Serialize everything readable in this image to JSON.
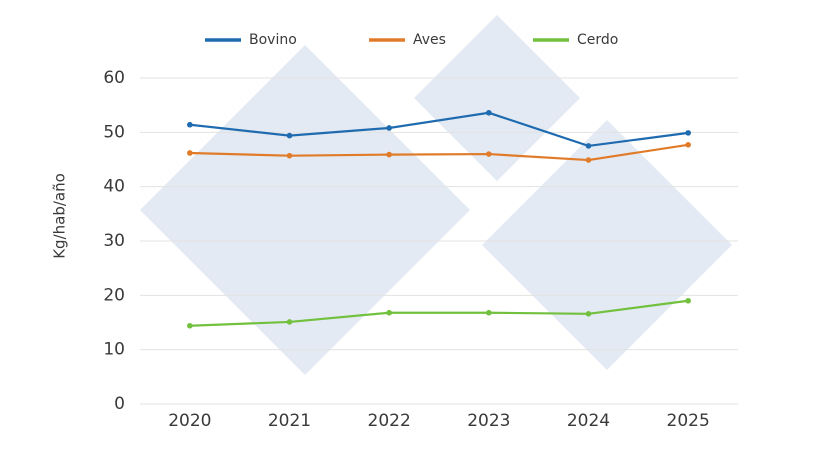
{
  "chart_data": {
    "type": "line",
    "y_label": "Kg/hab/año",
    "categories": [
      "2020",
      "2021",
      "2022",
      "2023",
      "2024",
      "2025"
    ],
    "series": [
      {
        "name": "Bovino",
        "color": "#1f6bb0",
        "values": [
          51.4,
          49.4,
          50.8,
          53.6,
          47.5,
          49.9
        ]
      },
      {
        "name": "Aves",
        "color": "#e07b2a",
        "values": [
          46.2,
          45.7,
          45.9,
          46.0,
          44.9,
          47.7
        ]
      },
      {
        "name": "Cerdo",
        "color": "#72c13e",
        "values": [
          14.4,
          15.1,
          16.8,
          16.8,
          16.6,
          19.0
        ]
      }
    ],
    "ylim": [
      0,
      60
    ],
    "yticks": [
      0,
      10,
      20,
      30,
      40,
      50,
      60
    ],
    "grid": true
  }
}
